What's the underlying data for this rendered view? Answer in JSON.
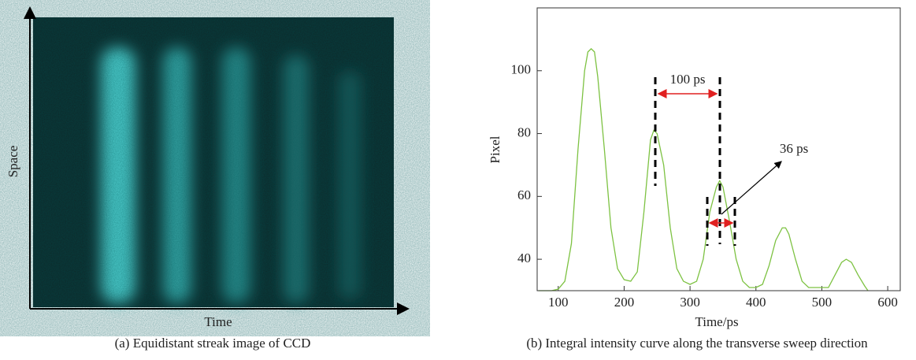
{
  "panel_a": {
    "x_label": "Time",
    "y_label": "Space",
    "caption": "(a) Equidistant streak image of CCD"
  },
  "chart_data": {
    "type": "line",
    "caption": "(b) Integral intensity curve along the transverse sweep direction",
    "x_label": "Time/ps",
    "y_label": "Pixel",
    "annotations": [
      "100 ps",
      "36 ps"
    ],
    "x": [
      70,
      80,
      90,
      100,
      110,
      120,
      130,
      140,
      145,
      150,
      155,
      160,
      170,
      180,
      190,
      200,
      210,
      220,
      230,
      240,
      245,
      250,
      260,
      270,
      280,
      290,
      300,
      310,
      320,
      330,
      340,
      345,
      350,
      360,
      370,
      380,
      390,
      400,
      410,
      420,
      430,
      440,
      445,
      450,
      460,
      470,
      480,
      490,
      500,
      510,
      520,
      530,
      537,
      545,
      555,
      565,
      570
    ],
    "series": [
      {
        "color": "#7dc242",
        "values": [
          30,
          30,
          30,
          30.5,
          33,
          45,
          75,
          100,
          106,
          107,
          106,
          98,
          75,
          50,
          37,
          33.5,
          33,
          36,
          55,
          78,
          81,
          80,
          70,
          50,
          37,
          33,
          32,
          33,
          40,
          55,
          63,
          65,
          63,
          52,
          40,
          33,
          31,
          31,
          32,
          38,
          46,
          50,
          50,
          48,
          40,
          33,
          31,
          31,
          31,
          31,
          35,
          39,
          40,
          39,
          35,
          31.5,
          30
        ]
      }
    ],
    "xlim": [
      68,
      619
    ],
    "ylim": [
      30,
      120
    ],
    "xticks": [
      100,
      200,
      300,
      400,
      500,
      600
    ],
    "yticks": [
      40,
      60,
      80,
      100
    ]
  }
}
